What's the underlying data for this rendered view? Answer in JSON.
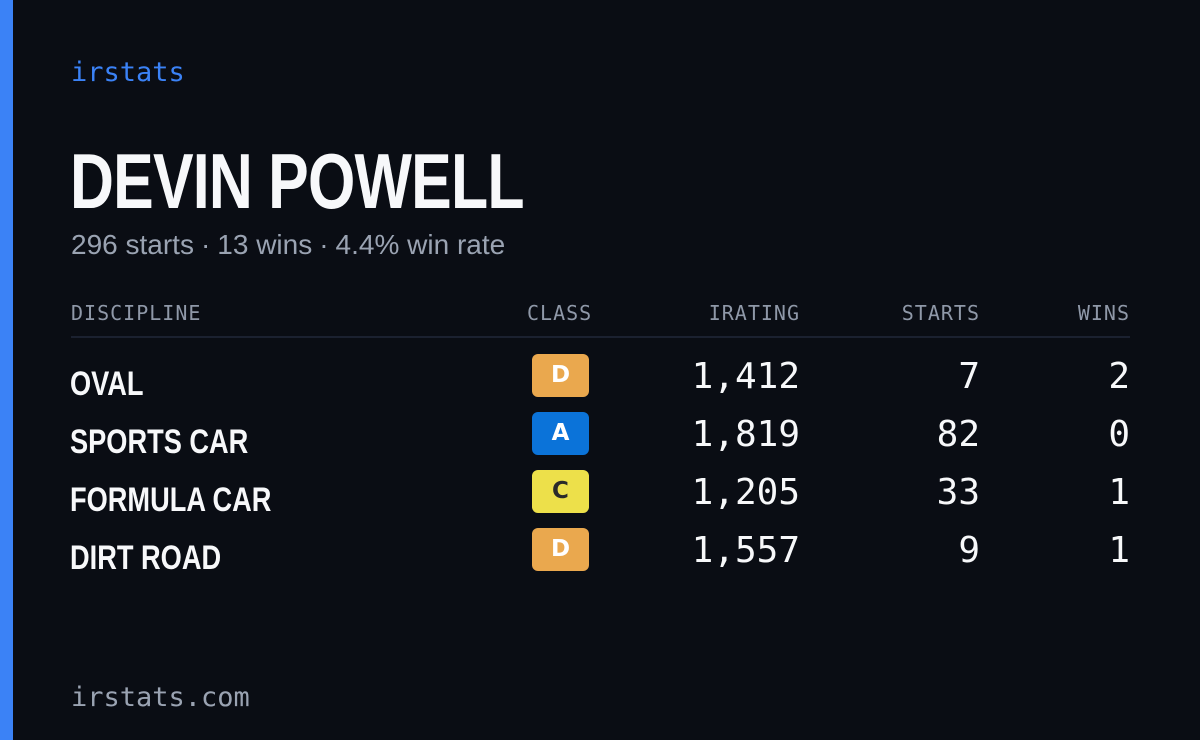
{
  "brand": "irstats",
  "driver": {
    "name": "DEVIN POWELL",
    "starts": "296 starts",
    "wins": "13 wins",
    "win_rate": "4.4% win rate",
    "separator": "·"
  },
  "columns": {
    "discipline": "DISCIPLINE",
    "class": "CLASS",
    "irating": "IRATING",
    "starts": "STARTS",
    "wins": "WINS"
  },
  "rows": [
    {
      "discipline": "OVAL",
      "class": "D",
      "class_bg": "#eaa84e",
      "class_fg": "#ffffff",
      "irating": "1,412",
      "starts": "7",
      "wins": "2"
    },
    {
      "discipline": "SPORTS CAR",
      "class": "A",
      "class_bg": "#0b73d9",
      "class_fg": "#ffffff",
      "irating": "1,819",
      "starts": "82",
      "wins": "0"
    },
    {
      "discipline": "FORMULA CAR",
      "class": "C",
      "class_bg": "#ede04a",
      "class_fg": "#2a2a2a",
      "irating": "1,205",
      "starts": "33",
      "wins": "1"
    },
    {
      "discipline": "DIRT ROAD",
      "class": "D",
      "class_bg": "#eaa84e",
      "class_fg": "#ffffff",
      "irating": "1,557",
      "starts": "9",
      "wins": "1"
    }
  ],
  "footer": "irstats.com",
  "colors": {
    "accent": "#3b82f6",
    "background": "#0a0d14"
  }
}
